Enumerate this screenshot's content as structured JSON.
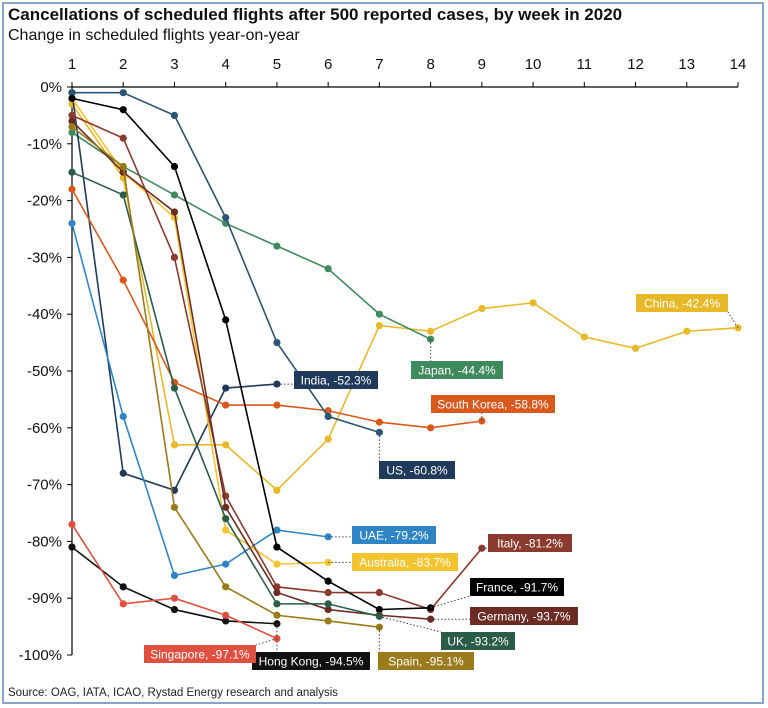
{
  "title": "Cancellations of scheduled flights after 500 reported cases, by week in 2020",
  "subtitle": "Change in scheduled flights year-on-year",
  "source": "Source: OAG, IATA, ICAO, Rystad Energy research and analysis",
  "chart_data": {
    "type": "line",
    "x_ticks": [
      1,
      2,
      3,
      4,
      5,
      6,
      7,
      8,
      9,
      10,
      11,
      12,
      13,
      14
    ],
    "xlim": [
      1,
      14
    ],
    "x_axis_position": "top",
    "ylim": [
      -100,
      0
    ],
    "y_ticks": [
      0,
      -10,
      -20,
      -30,
      -40,
      -50,
      -60,
      -70,
      -80,
      -90,
      -100
    ],
    "y_tick_labels": [
      "0%",
      "-10%",
      "-20%",
      "-30%",
      "-40%",
      "-50%",
      "-60%",
      "-70%",
      "-80%",
      "-90%",
      "-100%"
    ],
    "grid": false,
    "series": [
      {
        "name": "China",
        "color": "#e7b928",
        "label": "China, -42.4%",
        "x": [
          1,
          2,
          3,
          4,
          5,
          6,
          7,
          8,
          9,
          10,
          11,
          12,
          13,
          14
        ],
        "values": [
          -3,
          -16,
          -63,
          -63,
          -71,
          -62,
          -42,
          -43,
          -39,
          -38,
          -44,
          -46,
          -43,
          -42.4
        ]
      },
      {
        "name": "Japan",
        "color": "#3f8a5c",
        "label": "Japan, -44.4%",
        "x": [
          1,
          2,
          3,
          4,
          5,
          6,
          7,
          8
        ],
        "values": [
          -8,
          -14,
          -19,
          -24,
          -28,
          -32,
          -40,
          -44.4
        ]
      },
      {
        "name": "India",
        "color": "#1f3a5a",
        "label": "India, -52.3%",
        "x": [
          1,
          2,
          3,
          4,
          5
        ],
        "values": [
          -1,
          -68,
          -71,
          -53,
          -52.3
        ]
      },
      {
        "name": "South Korea",
        "color": "#d9591c",
        "label": "South Korea, -58.8%",
        "x": [
          1,
          2,
          3,
          4,
          5,
          6,
          7,
          8,
          9
        ],
        "values": [
          -18,
          -34,
          -52,
          -56,
          -56,
          -57,
          -59,
          -60,
          -58.8
        ]
      },
      {
        "name": "US",
        "color": "#2a5573",
        "label": "US, -60.8%",
        "x": [
          1,
          2,
          3,
          4,
          5,
          6,
          7
        ],
        "values": [
          -1,
          -1,
          -5,
          -23,
          -45,
          -58,
          -60.8
        ]
      },
      {
        "name": "UAE",
        "color": "#2f85c4",
        "label": "UAE, -79.2%",
        "x": [
          1,
          2,
          3,
          4,
          5,
          6
        ],
        "values": [
          -24,
          -58,
          -86,
          -84,
          -78,
          -79.2
        ]
      },
      {
        "name": "Australia",
        "color": "#f4c430",
        "label": "Australia, -83.7%",
        "x": [
          1,
          2,
          3,
          4,
          5,
          6
        ],
        "values": [
          -2,
          -15,
          -23,
          -78,
          -84,
          -83.7
        ]
      },
      {
        "name": "Italy",
        "color": "#8b3a2e",
        "label": "Italy, -81.2%",
        "x": [
          1,
          2,
          3,
          4,
          5,
          6,
          7,
          8,
          9
        ],
        "values": [
          -5,
          -9,
          -30,
          -72,
          -88,
          -89,
          -89,
          -92,
          -81.2
        ]
      },
      {
        "name": "France",
        "color": "#000000",
        "label": "France, -91.7%",
        "x": [
          1,
          2,
          3,
          4,
          5,
          6,
          7,
          8
        ],
        "values": [
          -2,
          -4,
          -14,
          -41,
          -81,
          -87,
          -92,
          -91.7
        ]
      },
      {
        "name": "Germany",
        "color": "#6b2c24",
        "label": "Germany, -93.7%",
        "x": [
          1,
          2,
          3,
          4,
          5,
          6,
          7,
          8
        ],
        "values": [
          -6,
          -15,
          -22,
          -74,
          -89,
          -92,
          -93,
          -93.7
        ]
      },
      {
        "name": "UK",
        "color": "#2a5c48",
        "label": "UK, -93.2%",
        "x": [
          1,
          2,
          3,
          4,
          5,
          6,
          7
        ],
        "values": [
          -15,
          -19,
          -53,
          -76,
          -91,
          -91,
          -93.2
        ]
      },
      {
        "name": "Spain",
        "color": "#9a7a1a",
        "label": "Spain, -95.1%",
        "x": [
          1,
          2,
          3,
          4,
          5,
          6,
          7
        ],
        "values": [
          -7,
          -14,
          -74,
          -88,
          -93,
          -94,
          -95.1
        ]
      },
      {
        "name": "Hong Kong",
        "color": "#111111",
        "label": "Hong Kong, -94.5%",
        "x": [
          1,
          2,
          3,
          4,
          5
        ],
        "values": [
          -81,
          -88,
          -92,
          -94,
          -94.5
        ]
      },
      {
        "name": "Singapore",
        "color": "#e05040",
        "label": "Singapore, -97.1%",
        "x": [
          1,
          2,
          3,
          4,
          5
        ],
        "values": [
          -77,
          -91,
          -90,
          -93,
          -97.1
        ]
      }
    ]
  }
}
